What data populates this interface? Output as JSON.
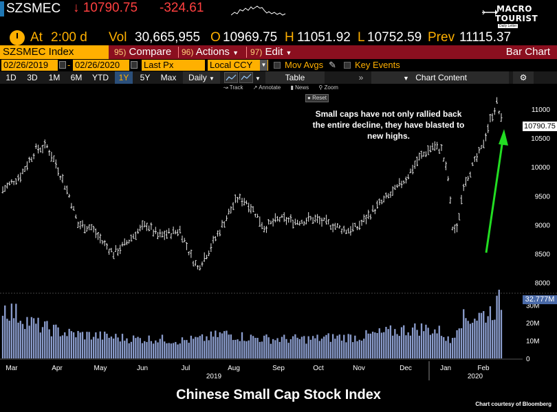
{
  "quote": {
    "symbol": "SZSMEC",
    "last_price": "↓ 10790.75",
    "change": "-324.61",
    "at_label": "At",
    "time": "2:00 d",
    "vol_label": "Vol",
    "volume": "30,665,955",
    "open_label": "O",
    "open": "10969.75",
    "high_label": "H",
    "high": "11051.92",
    "low_label": "L",
    "low": "10752.59",
    "prev_label": "Prev",
    "prev": "11115.37"
  },
  "logo": {
    "line1": "MACRO",
    "line2": "TOURIST",
    "tag": "Daily Letter"
  },
  "command_bar": {
    "ticker_input": "SZSMEC Index",
    "compare_num": "95)",
    "compare_label": "Compare",
    "actions_num": "96)",
    "actions_label": "Actions",
    "edit_num": "97)",
    "edit_label": "Edit",
    "view_title": "Bar Chart"
  },
  "params": {
    "start_date": "02/26/2019",
    "end_date": "02/26/2020",
    "field": "Last Px",
    "currency": "Local CCY",
    "mov_avgs": "Mov Avgs",
    "key_events": "Key Events"
  },
  "periods": [
    "1D",
    "3D",
    "1M",
    "6M",
    "YTD",
    "1Y",
    "5Y",
    "Max"
  ],
  "active_period": "1Y",
  "frequency": "Daily",
  "toolbar": {
    "table": "Table",
    "chart_content": "Chart Content"
  },
  "mini_tools": {
    "track": "Track",
    "annotate": "Annotate",
    "news": "News",
    "zoom": "Zoom",
    "reset": "Reset"
  },
  "annotation": "Small caps have not only rallied back the entire decline, they have blasted to new highs.",
  "price_label": "10790.75",
  "volume_label": "32.777M",
  "caption": "Chinese Small Cap Stock Index",
  "credit": "Chart courtesy of Bloomberg",
  "colors": {
    "accent": "#ffb000",
    "down": "#ff4040",
    "command_bar": "#8b0f1f",
    "volume": "#8a9ccc",
    "arrow": "#22dd22"
  },
  "chart_data": {
    "type": "bar",
    "price_axis": {
      "ticks": [
        "11000",
        "10500",
        "10000",
        "9500",
        "9000",
        "8500",
        "8000"
      ],
      "range": [
        7900,
        11250
      ]
    },
    "volume_axis": {
      "ticks": [
        "30M",
        "20M",
        "10M",
        "0"
      ],
      "range": [
        0,
        34
      ]
    },
    "months": [
      "Mar",
      "Apr",
      "May",
      "Jun",
      "Jul",
      "Aug",
      "Sep",
      "Oct",
      "Nov",
      "Dec",
      "Jan",
      "Feb"
    ],
    "years": [
      "2019",
      "2020"
    ],
    "price_anchors": [
      [
        0,
        9600
      ],
      [
        8,
        9850
      ],
      [
        15,
        10300
      ],
      [
        20,
        10350
      ],
      [
        24,
        10050
      ],
      [
        30,
        9500
      ],
      [
        34,
        9000
      ],
      [
        40,
        8950
      ],
      [
        45,
        8700
      ],
      [
        50,
        8500
      ],
      [
        55,
        8650
      ],
      [
        60,
        8850
      ],
      [
        65,
        9000
      ],
      [
        70,
        8800
      ],
      [
        76,
        8850
      ],
      [
        80,
        8900
      ],
      [
        85,
        8450
      ],
      [
        88,
        8250
      ],
      [
        93,
        8550
      ],
      [
        98,
        8900
      ],
      [
        102,
        9200
      ],
      [
        106,
        9450
      ],
      [
        110,
        9400
      ],
      [
        114,
        9200
      ],
      [
        118,
        8950
      ],
      [
        125,
        9100
      ],
      [
        132,
        9050
      ],
      [
        140,
        9100
      ],
      [
        148,
        9000
      ],
      [
        155,
        8900
      ],
      [
        160,
        8950
      ],
      [
        165,
        9150
      ],
      [
        170,
        9350
      ],
      [
        176,
        9550
      ],
      [
        182,
        9800
      ],
      [
        188,
        10150
      ],
      [
        194,
        10350
      ],
      [
        198,
        10300
      ],
      [
        201,
        9800
      ],
      [
        203,
        8950
      ],
      [
        205,
        8900
      ],
      [
        208,
        9700
      ],
      [
        212,
        10000
      ],
      [
        216,
        10300
      ],
      [
        220,
        10800
      ],
      [
        223,
        11100
      ],
      [
        225,
        10800
      ]
    ],
    "volume_anchors": [
      [
        0,
        29
      ],
      [
        5,
        26
      ],
      [
        10,
        22
      ],
      [
        15,
        19
      ],
      [
        20,
        17
      ],
      [
        30,
        14
      ],
      [
        40,
        13
      ],
      [
        50,
        12
      ],
      [
        60,
        11
      ],
      [
        70,
        11
      ],
      [
        80,
        10
      ],
      [
        90,
        11
      ],
      [
        100,
        14
      ],
      [
        110,
        12
      ],
      [
        120,
        11
      ],
      [
        130,
        11
      ],
      [
        140,
        11
      ],
      [
        150,
        12
      ],
      [
        160,
        12
      ],
      [
        170,
        14
      ],
      [
        180,
        16
      ],
      [
        190,
        17
      ],
      [
        198,
        15
      ],
      [
        202,
        9
      ],
      [
        206,
        22
      ],
      [
        212,
        23
      ],
      [
        218,
        25
      ],
      [
        222,
        28
      ],
      [
        225,
        33
      ]
    ]
  }
}
